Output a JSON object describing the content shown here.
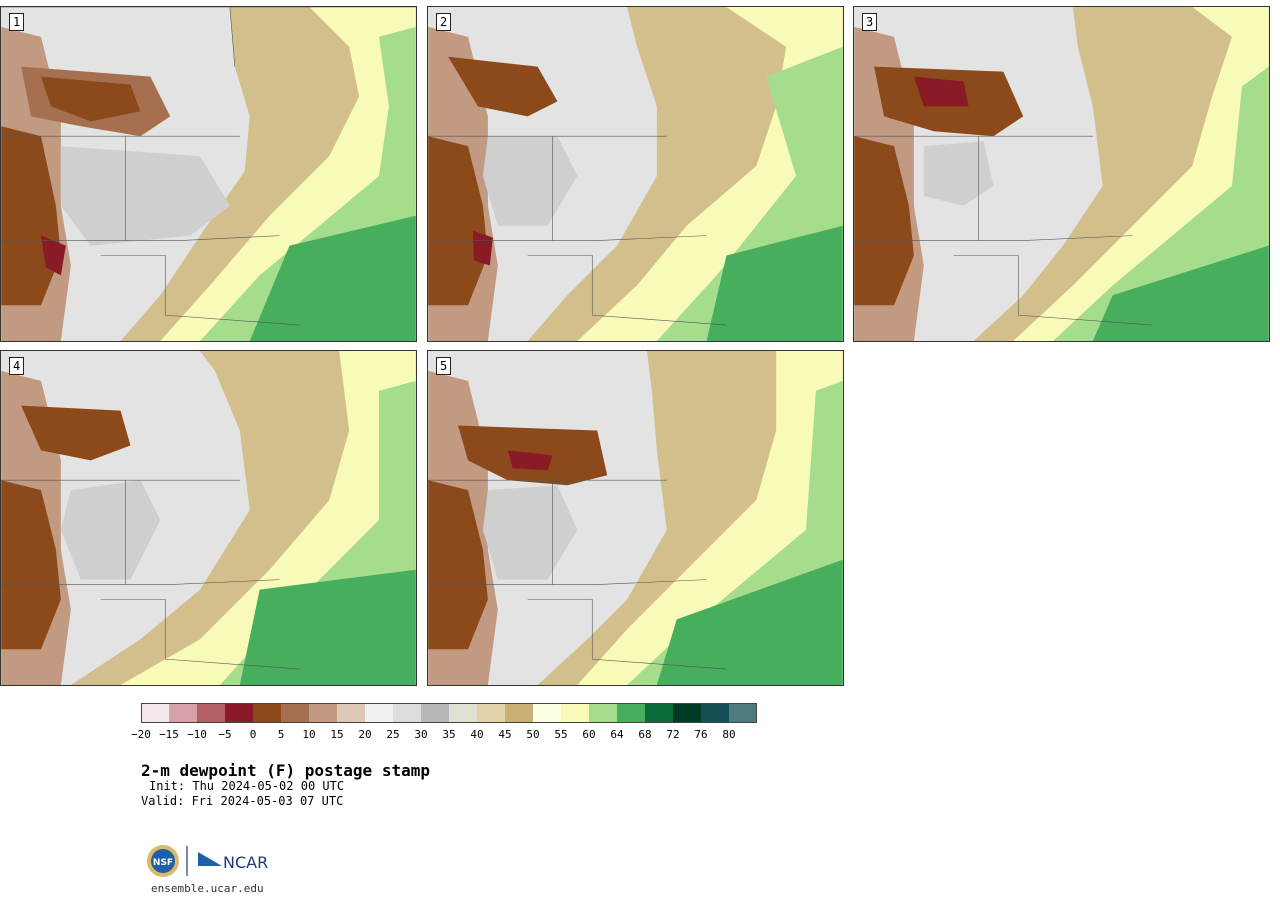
{
  "panels": [
    {
      "label": "1"
    },
    {
      "label": "2"
    },
    {
      "label": "3"
    },
    {
      "label": "4"
    },
    {
      "label": "5"
    }
  ],
  "colorbar": {
    "ticks": [
      "−20",
      "−15",
      "−10",
      "−5",
      "0",
      "5",
      "10",
      "15",
      "20",
      "25",
      "30",
      "35",
      "40",
      "45",
      "50",
      "55",
      "60",
      "64",
      "68",
      "72",
      "76",
      "80"
    ],
    "colors": [
      "#f4e9ea",
      "#d6a2a7",
      "#b25f66",
      "#8a1a25",
      "#8c4a1a",
      "#a67050",
      "#c29a82",
      "#dfc7b8",
      "#f0f0f0",
      "#dcdcdc",
      "#b8b8b8",
      "#e1e0d3",
      "#e2d3a9",
      "#c9ae75",
      "#fdfde2",
      "#f7fbb7",
      "#a6dd8d",
      "#46ae5c",
      "#0b6b3b",
      "#003a26",
      "#164f55",
      "#4f7b80"
    ]
  },
  "title": "2-m dewpoint (F) postage stamp",
  "init": "Init: Thu 2024-05-02 00 UTC",
  "valid": "Valid: Fri 2024-05-03 07 UTC",
  "logo": {
    "nsf": "NSF",
    "ncar": "NCAR"
  },
  "url": "ensemble.ucar.edu"
}
